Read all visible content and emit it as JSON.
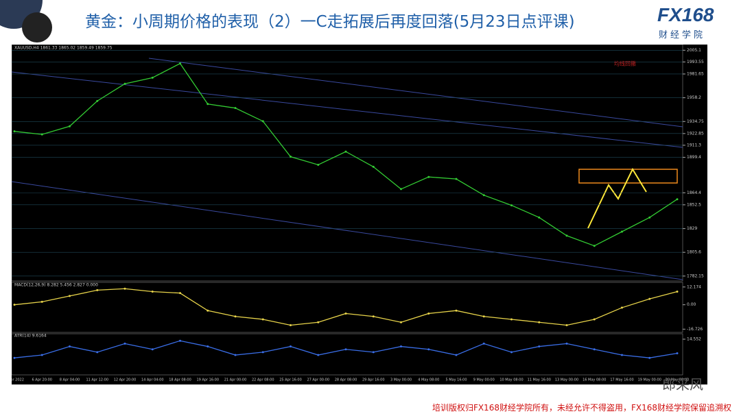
{
  "header": {
    "title": "黄金：小周期价格的表现（2）一C走拓展后再度回落(5月23日点评课)",
    "logo": "FX168",
    "logo_sub": "财经学院"
  },
  "footer": "培训版权归FX168财经学院所有，未经允许不得盗用，FX168财经学院保留追溯权",
  "watermark": "郎采风",
  "chart_data": [
    {
      "type": "line",
      "title": "XAUUSD,H4 1861.33 1865.02 1859.49 1859.75",
      "annotation": "均线回撤",
      "color": "#33cc33",
      "categories": [
        "5 Apr 2022",
        "6 Apr 20:00",
        "8 Apr 04:00",
        "11 Apr 12:00",
        "12 Apr 20:00",
        "14 Apr 04:00",
        "18 Apr 08:00",
        "19 Apr 16:00",
        "21 Apr 00:00",
        "22 Apr 08:00",
        "25 Apr 16:00",
        "27 Apr 00:00",
        "28 Apr 08:00",
        "29 Apr 16:00",
        "3 May 00:00",
        "4 May 08:00",
        "5 May 16:00",
        "9 May 00:00",
        "10 May 08:00",
        "11 May 16:00",
        "13 May 00:00",
        "16 May 08:00",
        "17 May 16:00",
        "19 May 00:00",
        "20 May 08:00"
      ],
      "values": [
        1925,
        1922,
        1930,
        1955,
        1972,
        1978,
        1992,
        1952,
        1948,
        1935,
        1900,
        1892,
        1905,
        1890,
        1868,
        1880,
        1878,
        1862,
        1852,
        1840,
        1822,
        1812,
        1826,
        1840,
        1858
      ],
      "ylim": [
        1780,
        2008
      ],
      "yticks": [
        2005.1,
        1993.55,
        1981.65,
        1958.2,
        1934.75,
        1922.85,
        1911.3,
        1899.4,
        1864.4,
        1852.5,
        1829.0,
        1805.6,
        1782.15
      ]
    },
    {
      "type": "line",
      "title": "MACD(12,26,9) 8.282 5.456 2.827 0.000",
      "color": "#e8d44a",
      "values": [
        0,
        2,
        6,
        10,
        11,
        9,
        8,
        -4,
        -8,
        -10,
        -14,
        -12,
        -6,
        -8,
        -12,
        -6,
        -4,
        -8,
        -10,
        -12,
        -14,
        -10,
        -2,
        4,
        9
      ],
      "ylim": [
        -18,
        13
      ],
      "yticks": [
        12.174,
        {
          "value": 0,
          "label": "0.00"
        },
        -16.726
      ]
    },
    {
      "type": "line",
      "title": "ATR(14) 9.6164",
      "color": "#3a6ee8",
      "values": [
        8,
        9,
        12,
        10,
        13,
        11,
        14,
        12,
        9,
        10,
        12,
        9,
        11,
        10,
        12,
        11,
        9,
        13,
        10,
        12,
        13,
        11,
        9,
        8,
        9.6164
      ],
      "ylim": [
        3,
        15.5
      ],
      "yticks": [
        14.552
      ]
    }
  ]
}
